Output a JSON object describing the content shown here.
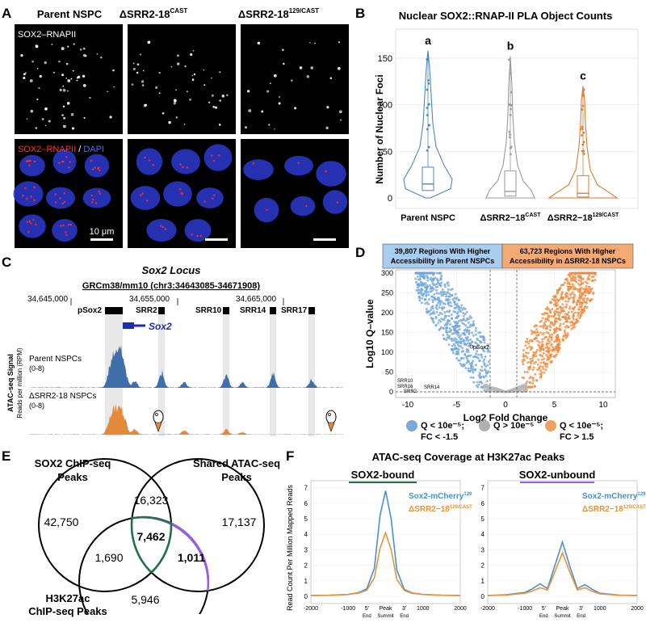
{
  "panels": {
    "a": {
      "letter": "A",
      "col_titles": [
        "Parent NSPC",
        "ΔSRR2-18",
        "ΔSRR2-18"
      ],
      "col_sup": [
        "",
        "CAST",
        "129/CAST"
      ],
      "label_row1": "SOX2–RNAPII",
      "label_row2_red": "SOX2–RNAPII",
      "label_row2_sep": " / ",
      "label_row2_blue": "DAPI",
      "scalebar": "10 μm"
    },
    "b": {
      "letter": "B",
      "title": "Nuclear SOX2::RNAP-II PLA Object Counts",
      "ylabel": "Number of Nuclear Foci",
      "letters": [
        "a",
        "b",
        "c"
      ]
    },
    "c": {
      "letter": "C",
      "title": "Sox2 Locus",
      "assembly": "GRCm38/mm10 (chr3:34643085-34671908)",
      "coords": [
        "34,645,000",
        "34,655,000",
        "34,665,000"
      ],
      "elements": [
        "pSox2",
        "SRR2",
        "SRR10",
        "SRR14",
        "SRR17"
      ],
      "gene": "Sox2",
      "ylabel1": "ATAC-seq Signal",
      "ylabel2": "Reads per million (RPM)",
      "track1": "Parent NSPCs",
      "track1_range": "(0-8)",
      "track2": "ΔSRR2-18 NSPCs",
      "track2_range": "(0-8)"
    },
    "d": {
      "letter": "D",
      "box_left": [
        "39,807 Regions With Higher",
        "Accessibility in Parent NSPCs"
      ],
      "box_right": [
        "63,723 Regions With Higher",
        "Accessibility in ΔSRR2-18 NSPCs"
      ],
      "legend": [
        {
          "label1": "Q < 10e⁻⁵;",
          "label2": "FC < -1.5",
          "color": "#7aa8d8"
        },
        {
          "label1": "Q > 10e⁻⁵",
          "label2": "",
          "color": "#b0b0b0"
        },
        {
          "label1": "Q < 10e⁻⁵;",
          "label2": "FC > 1.5",
          "color": "#f0a060"
        }
      ],
      "annot_psox2": "pSox2",
      "annot_small": [
        "SRR10",
        "SRR16",
        "SRR2",
        "SRR14"
      ]
    },
    "e": {
      "letter": "E",
      "set1": [
        "SOX2 ChIP-seq",
        "Peaks"
      ],
      "set2": [
        "Shared ATAC-seq",
        "Peaks"
      ],
      "set3": [
        "H3K27ac",
        "ChIP-seq Peaks"
      ],
      "counts": {
        "only1": "42,750",
        "s12": "16,323",
        "only2": "17,137",
        "center": "7,462",
        "s13": "1,690",
        "s23": "1,011",
        "only3": "5,946"
      }
    },
    "f": {
      "letter": "F",
      "title": "ATAC-seq Coverage at H3K27ac Peaks",
      "sub_left": "SOX2-bound",
      "sub_right": "SOX2-unbound",
      "ylabel": "Read Count Per Million Mapped Reads",
      "legend1": "Sox2-mCherry",
      "legend1_sup": "129",
      "legend2": "ΔSRR2−18",
      "legend2_sup": "129/CAST",
      "xticks_left": [
        "-2000",
        "-1000",
        "5'",
        "Peak",
        "3'",
        "1000",
        "2000"
      ],
      "xticks_right": [
        "-2000",
        "-1000",
        "5'",
        "Peak",
        "3'",
        "1000",
        "2000"
      ],
      "xsub": [
        "End",
        "Summit",
        "End"
      ],
      "yticks": [
        "0",
        "1",
        "2",
        "3",
        "4",
        "5",
        "6",
        "7"
      ]
    }
  },
  "chart_data": [
    {
      "type": "violin",
      "title": "Nuclear SOX2::RNAP-II PLA Object Counts",
      "categories": [
        "Parent NSPC",
        "ΔSRR2−18",
        "ΔSRR2−18"
      ],
      "category_sup": [
        "",
        "CAST",
        "129/CAST"
      ],
      "ylabel": "Number of Nuclear Foci",
      "ylim": [
        0,
        160
      ],
      "yticks": [
        0,
        50,
        100,
        150
      ],
      "medians": [
        15,
        7,
        5
      ],
      "q1": [
        8,
        2,
        1
      ],
      "q3": [
        33,
        29,
        24
      ],
      "max": [
        158,
        152,
        120
      ],
      "colors": [
        "#4a86c5",
        "#9a9a9a",
        "#e07a30"
      ]
    },
    {
      "type": "scatter",
      "xlabel": "Log2 Fold Change",
      "ylabel": "Log10 Q–value",
      "xlim": [
        -11,
        11
      ],
      "ylim": [
        0,
        310
      ],
      "xticks": [
        -10,
        -5,
        0,
        5,
        10
      ],
      "yticks": [
        0,
        50,
        100,
        150,
        200,
        250,
        300
      ]
    },
    {
      "type": "line",
      "title": "SOX2-bound",
      "xlim": [
        -2000,
        2000
      ],
      "ylim": [
        0,
        7
      ],
      "series": [
        {
          "name": "Sox2-mCherry",
          "color": "#4a90d0",
          "x": [
            -2000,
            -1500,
            -1000,
            -700,
            -500,
            -300,
            -150,
            0,
            150,
            300,
            500,
            700,
            1000,
            1500,
            2000
          ],
          "y": [
            0.05,
            0.07,
            0.12,
            0.25,
            0.5,
            1.8,
            5.2,
            6.8,
            5.0,
            1.7,
            0.45,
            0.22,
            0.12,
            0.07,
            0.05
          ]
        },
        {
          "name": "ΔSRR2−18",
          "color": "#e8923a",
          "x": [
            -2000,
            -1500,
            -1000,
            -700,
            -500,
            -300,
            -150,
            0,
            150,
            300,
            500,
            700,
            1000,
            1500,
            2000
          ],
          "y": [
            0.05,
            0.07,
            0.12,
            0.22,
            0.4,
            1.2,
            3.1,
            4.1,
            3.0,
            1.1,
            0.38,
            0.2,
            0.12,
            0.07,
            0.05
          ]
        }
      ]
    },
    {
      "type": "line",
      "title": "SOX2-unbound",
      "xlim": [
        -2000,
        2000
      ],
      "ylim": [
        0,
        7
      ],
      "series": [
        {
          "name": "Sox2-mCherry",
          "color": "#4a90d0",
          "x": [
            -2000,
            -1500,
            -1000,
            -800,
            -600,
            -400,
            -200,
            0,
            200,
            400,
            600,
            800,
            1000,
            1500,
            2000
          ],
          "y": [
            0.05,
            0.1,
            0.25,
            0.5,
            0.8,
            0.5,
            2.0,
            3.5,
            1.9,
            0.5,
            0.75,
            0.45,
            0.2,
            0.08,
            0.05
          ]
        },
        {
          "name": "ΔSRR2−18",
          "color": "#e8923a",
          "x": [
            -2000,
            -1500,
            -1000,
            -800,
            -600,
            -400,
            -200,
            0,
            200,
            400,
            600,
            800,
            1000,
            1500,
            2000
          ],
          "y": [
            0.05,
            0.08,
            0.2,
            0.35,
            0.55,
            0.4,
            1.6,
            2.8,
            1.55,
            0.4,
            0.55,
            0.32,
            0.16,
            0.07,
            0.05
          ]
        }
      ]
    }
  ]
}
